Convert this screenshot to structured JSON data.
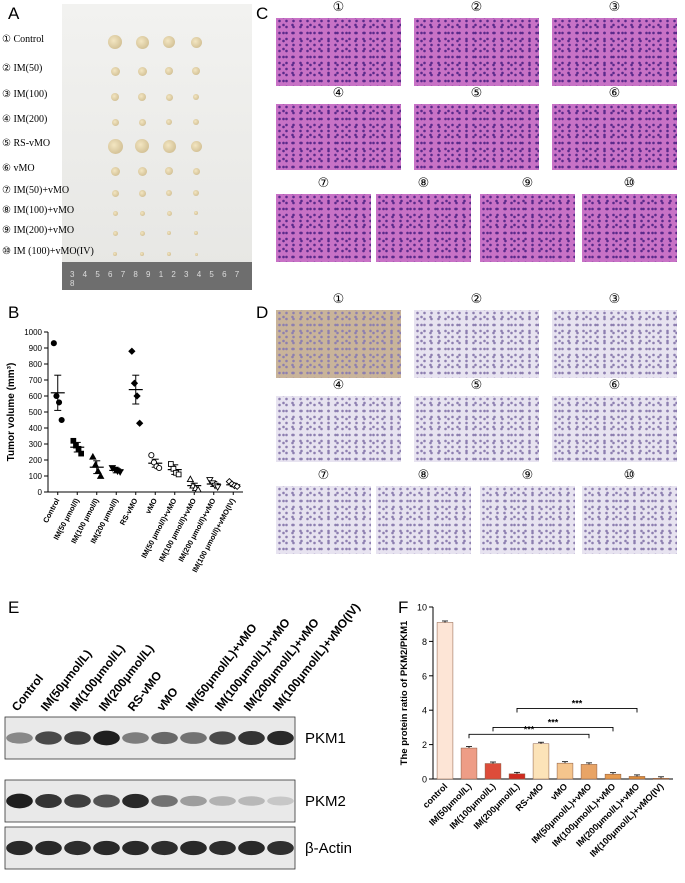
{
  "panels": {
    "a": "A",
    "b": "B",
    "c": "C",
    "d": "D",
    "e": "E",
    "f": "F"
  },
  "panel_a": {
    "groups": [
      "① Control",
      "② IM(50)",
      "③ IM(100)",
      "④ IM(200)",
      "⑤ RS-vMO",
      "⑥ vMO",
      "⑦ IM(50)+vMO",
      "⑧ IM(100)+vMO",
      "⑨ IM(200)+vMO",
      "⑩ IM (100)+vMO(IV)"
    ],
    "ruler": "3 4 5 6 7 8 9 1 2 3 4 5 6 7 8"
  },
  "circled": [
    "①",
    "②",
    "③",
    "④",
    "⑤",
    "⑥",
    "⑦",
    "⑧",
    "⑨",
    "⑩"
  ],
  "colors": {
    "he_stain": "#c872c6",
    "ihc_stain": "#e7e3f0",
    "dab": "#8a5a2b",
    "bar_control": "#fde5d6"
  },
  "chart_data": [
    {
      "type": "scatter",
      "ylabel": "Tumor volume (mm³)",
      "ylim": [
        0,
        1000
      ],
      "yticks": [
        0,
        100,
        200,
        300,
        400,
        500,
        600,
        700,
        800,
        900,
        1000
      ],
      "categories": [
        "Control",
        "IM(50 μmol/l)",
        "IM(100 μmol/l)",
        "IM(200 μmol/l)",
        "RS-vMO",
        "vMO",
        "IM(50 μmol/l)+vMO",
        "IM(100 μmol/l)+vMO",
        "IM(200 μmol/l)+vMO",
        "IM(100 μmol/l)+vMO(IV)"
      ],
      "markers": [
        "circle",
        "square",
        "triangle",
        "inverted-triangle",
        "diamond",
        "open-circle",
        "open-square",
        "open-triangle",
        "open-inverted-triangle",
        "open-diamond"
      ],
      "means": [
        620,
        280,
        155,
        135,
        640,
        180,
        140,
        40,
        50,
        45
      ],
      "errors": [
        110,
        30,
        40,
        15,
        90,
        25,
        30,
        15,
        15,
        10
      ],
      "points": [
        [
          930,
          600,
          560,
          450
        ],
        [
          320,
          290,
          270,
          240
        ],
        [
          220,
          170,
          130,
          100
        ],
        [
          150,
          140,
          130,
          125
        ],
        [
          880,
          680,
          600,
          430
        ],
        [
          230,
          185,
          160,
          150
        ],
        [
          175,
          145,
          120,
          110
        ],
        [
          80,
          40,
          25,
          15
        ],
        [
          75,
          55,
          40,
          30
        ],
        [
          65,
          50,
          40,
          35
        ]
      ]
    },
    {
      "type": "bar",
      "ylabel": "The protein ratio of PKM2/PKM1",
      "ylim": [
        0,
        10
      ],
      "yticks": [
        0,
        2,
        4,
        6,
        8,
        10
      ],
      "categories": [
        "control",
        "IM(50μmol/L)",
        "IM(100μmol/L)",
        "IM(200μmol/L)",
        "RS-vMO",
        "vMO",
        "IM(50μmol/L)+vMO",
        "IM(100μmol/L)+vMO",
        "IM(200μmol/L)+vMO",
        "IM(100μmol/L)+vMO(IV)"
      ],
      "values": [
        9.1,
        1.8,
        0.9,
        0.3,
        2.05,
        0.92,
        0.85,
        0.28,
        0.15,
        0.04
      ],
      "colors": [
        "#fde5d6",
        "#ee9d86",
        "#dd4c3a",
        "#cf2a1f",
        "#fce3b8",
        "#f5c58d",
        "#e8a466",
        "#e69a4e",
        "#dc8d3b",
        "#d98a30"
      ],
      "significance": [
        {
          "from": 1,
          "to": 6,
          "label": "***"
        },
        {
          "from": 2,
          "to": 7,
          "label": "***"
        },
        {
          "from": 3,
          "to": 8,
          "label": "***"
        }
      ]
    }
  ],
  "panel_e": {
    "lanes": [
      "Control",
      "IM(50μmol/L)",
      "IM(100μmol/L)",
      "IM(200μmol/L)",
      "RS-vMO",
      "vMO",
      "IM(50μmol/L)+vMO",
      "IM(100μmol/L)+vMO",
      "IM(200μmol/L)+vMO",
      "IM(100μmol/L)+vMO(IV)"
    ],
    "blots": [
      {
        "name": "PKM1",
        "intensity": [
          0.45,
          0.75,
          0.8,
          0.95,
          0.5,
          0.6,
          0.55,
          0.75,
          0.85,
          0.9
        ]
      },
      {
        "name": "PKM2",
        "intensity": [
          0.95,
          0.85,
          0.8,
          0.7,
          0.9,
          0.55,
          0.35,
          0.25,
          0.22,
          0.15
        ]
      },
      {
        "name": "β-Actin",
        "intensity": [
          0.9,
          0.9,
          0.88,
          0.9,
          0.9,
          0.88,
          0.9,
          0.88,
          0.9,
          0.87
        ]
      }
    ]
  }
}
